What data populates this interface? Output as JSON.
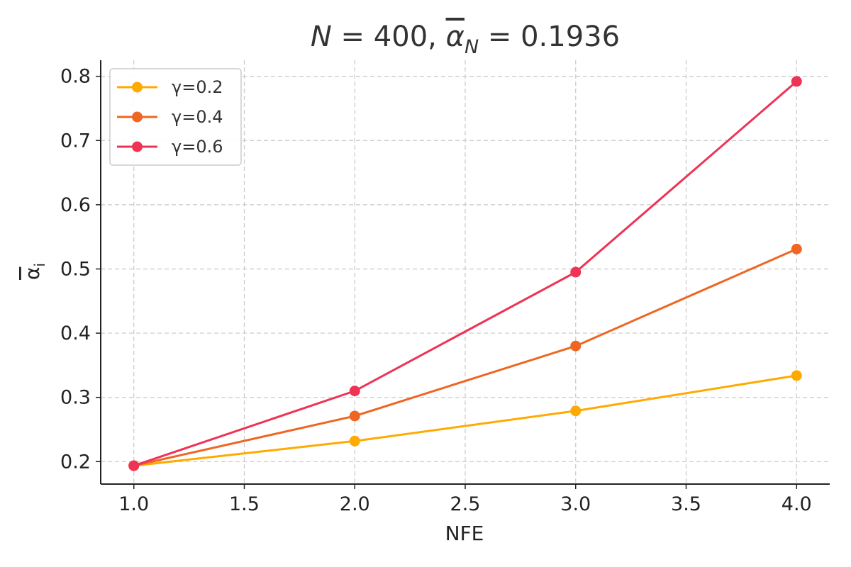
{
  "chart_data": {
    "type": "line",
    "title": {
      "lhs1": "N",
      "eq1": " = 400, ",
      "lhs2": "α",
      "sub2": "N",
      "eq2": " = 0.1936"
    },
    "xlabel": "NFE",
    "ylabel": {
      "sym": "α",
      "sub": "i"
    },
    "x": [
      1.0,
      2.0,
      3.0,
      4.0
    ],
    "xlim": [
      0.85,
      4.15
    ],
    "ylim": [
      0.165,
      0.825
    ],
    "xticks": [
      "1.0",
      "1.5",
      "2.0",
      "2.5",
      "3.0",
      "3.5",
      "4.0"
    ],
    "yticks": [
      "0.2",
      "0.3",
      "0.4",
      "0.5",
      "0.6",
      "0.7",
      "0.8"
    ],
    "grid": true,
    "legend_position": "top-left",
    "series": [
      {
        "name": "γ=0.2",
        "color": "#FFAA00",
        "values": [
          0.1936,
          0.232,
          0.279,
          0.334
        ]
      },
      {
        "name": "γ=0.4",
        "color": "#EE6622",
        "values": [
          0.1936,
          0.271,
          0.38,
          0.531
        ]
      },
      {
        "name": "γ=0.6",
        "color": "#EE3355",
        "values": [
          0.1936,
          0.31,
          0.495,
          0.792
        ]
      }
    ]
  }
}
